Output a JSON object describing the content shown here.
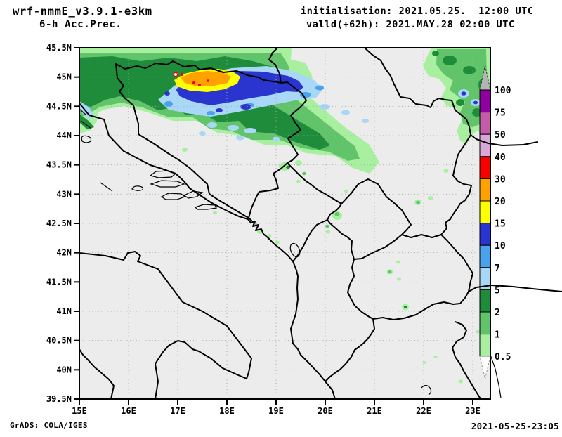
{
  "header": {
    "model": "wrf-nmmE_v3.9.1-e3km",
    "product": "6-h Acc.Prec.",
    "init_line": "initialisation: 2021.05.25.  12:00 UTC",
    "valid_line": "valld(+62h): 2021.MAY.28 02:00 UTC"
  },
  "footer": {
    "generator": "GrADS: COLA/IGES",
    "created": "2021-05-25-23:05"
  },
  "map": {
    "lat_labels": [
      "45.5N",
      "45N",
      "44.5N",
      "44N",
      "43.5N",
      "43N",
      "42.5N",
      "42N",
      "41.5N",
      "41N",
      "40.5N",
      "40N",
      "39.5N"
    ],
    "lon_labels": [
      "15E",
      "16E",
      "17E",
      "18E",
      "19E",
      "20E",
      "21E",
      "22E",
      "23E"
    ]
  },
  "colorbar": {
    "tick_labels": [
      "100",
      "75",
      "50",
      "40",
      "30",
      "20",
      "15",
      "10",
      "7",
      "5",
      "2",
      "1",
      "0.5"
    ],
    "colors_top_to_bottom": [
      "#8e00a0",
      "#c45ca8",
      "#d9a8d9",
      "#f80000",
      "#ffa200",
      "#ffff00",
      "#2a35cf",
      "#4aa2ee",
      "#a8d8f6",
      "#1f8c3c",
      "#62c46a",
      "#a8f0a0"
    ],
    "above_max_color": "#b4b4b4",
    "below_min_color": "#ffffff"
  },
  "chart_data": {
    "type": "heatmap",
    "title": "6-h Acc.Prec.",
    "subtitle": "wrf-nmmE_v3.9.1-e3km precipitation forecast map (Balkans / Adriatic)",
    "x_axis": {
      "ticks": [
        "15E",
        "16E",
        "17E",
        "18E",
        "19E",
        "20E",
        "21E",
        "22E",
        "23E"
      ],
      "range_deg_east": [
        15,
        23.36
      ]
    },
    "y_axis": {
      "ticks": [
        "39.5N",
        "40N",
        "40.5N",
        "41N",
        "41.5N",
        "42N",
        "42.5N",
        "43N",
        "43.5N",
        "44N",
        "44.5N",
        "45N",
        "45.5N"
      ],
      "range_deg_north": [
        39.5,
        45.5
      ]
    },
    "legend_levels_mm": [
      0.5,
      1,
      2,
      5,
      7,
      10,
      15,
      20,
      30,
      40,
      50,
      75,
      100
    ],
    "legend_colors_low_to_high": [
      "#a8f0a0",
      "#62c46a",
      "#1f8c3c",
      "#a8d8f6",
      "#4aa2ee",
      "#2a35cf",
      "#ffff00",
      "#ffa200",
      "#f80000",
      "#d9a8d9",
      "#c45ca8",
      "#8e00a0",
      "#b4b4b4"
    ],
    "grid": true,
    "legend_position": "right",
    "features": [
      {
        "name": "main-precip-band",
        "desc": "Broad rain shield over Croatia, Bosnia and NW Serbia, approx 15-21E / 43.3-45.5N, mostly 0.5-5 mm with embedded 5-15 mm streaks"
      },
      {
        "name": "intense-core",
        "desc": "Maximum cell near 16.9-18.3E / 44.6-45.1N with 15-40 mm (yellow/orange), small red 30-40 mm specks and a tiny >40 mm white/red spot near 17.0E 45.0N"
      },
      {
        "name": "ne-cluster",
        "desc": "Secondary rain area near 21.5-23.3E / 44.2-45.5N with two 5-15 mm blue cells near 22.8E 44.7N"
      },
      {
        "name": "scattered-cells",
        "desc": "Isolated 0.5-2 mm cells over Serbia, Kosovo, North Macedonia and the Montenegro coast; thin 0.5-10 mm strip on the far NW coast near 15E 44.3N"
      }
    ]
  }
}
